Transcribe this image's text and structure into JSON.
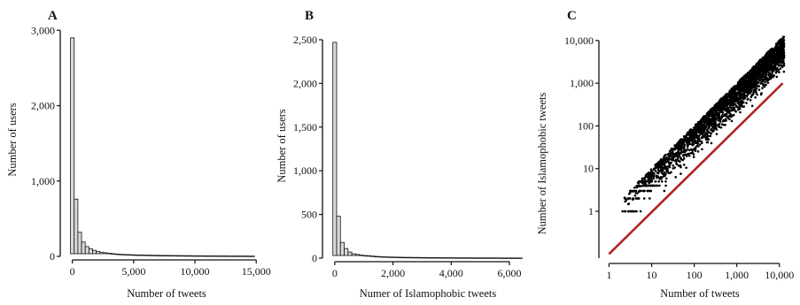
{
  "chart_data": [
    {
      "panel": "A",
      "type": "bar",
      "xlabel": "Number of tweets",
      "ylabel": "Number of users",
      "xlim": [
        -700,
        15200
      ],
      "ylim": [
        0,
        3050
      ],
      "xticks": [
        0,
        5000,
        10000,
        15000
      ],
      "xtick_labels": [
        "0",
        "5,000",
        "10,000",
        "15,000"
      ],
      "yticks": [
        0,
        1000,
        2000,
        3000
      ],
      "ytick_labels": [
        "0",
        "1,000",
        "2,000",
        "3,000"
      ],
      "bin_width": 300,
      "bin_start": -150,
      "values": [
        2900,
        760,
        320,
        190,
        130,
        100,
        80,
        65,
        55,
        48,
        42,
        36,
        32,
        28,
        26,
        24,
        22,
        20,
        19,
        18,
        17,
        16,
        15,
        14,
        13,
        12,
        12,
        11,
        11,
        10,
        10,
        9,
        9,
        8,
        8,
        8,
        7,
        7,
        7,
        6,
        6,
        6,
        6,
        5,
        5,
        5,
        5,
        5,
        4,
        4
      ],
      "fill": "#d9d9d9",
      "stroke": "#111111"
    },
    {
      "panel": "B",
      "type": "bar",
      "xlabel": "Numer of Islamophobic tweets",
      "ylabel": "Number of users",
      "xlim": [
        -300,
        6700
      ],
      "ylim": [
        0,
        2550
      ],
      "xticks": [
        0,
        2000,
        4000,
        6000
      ],
      "xtick_labels": [
        "0",
        "2,000",
        "4,000",
        "6,000"
      ],
      "yticks": [
        0,
        500,
        1000,
        1500,
        2000,
        2500
      ],
      "ytick_labels": [
        "0",
        "500",
        "1,000",
        "1,500",
        "2,000",
        "2,500"
      ],
      "bin_width": 130,
      "bin_start": -65,
      "values": [
        2470,
        480,
        180,
        110,
        70,
        50,
        42,
        35,
        30,
        28,
        24,
        20,
        18,
        16,
        14,
        13,
        12,
        11,
        10,
        9,
        9,
        8,
        8,
        7,
        7,
        6,
        6,
        6,
        5,
        5,
        5,
        5,
        4,
        4,
        4,
        4,
        4,
        3,
        3,
        3,
        3,
        3,
        3,
        3,
        2,
        2,
        2,
        2,
        2,
        2
      ],
      "fill": "#d9d9d9",
      "stroke": "#111111"
    },
    {
      "panel": "C",
      "type": "scatter",
      "xlabel": "Number of tweets",
      "ylabel": "Number of Islamophobic tweets",
      "xscale": "log",
      "yscale": "log",
      "xlim": [
        0.7,
        18000
      ],
      "ylim": [
        0.08,
        12000
      ],
      "xticks": [
        1,
        10,
        100,
        1000,
        10000
      ],
      "xtick_labels": [
        "1",
        "10",
        "100",
        "1,000",
        "10,000"
      ],
      "yticks": [
        1,
        10,
        100,
        1000,
        10000
      ],
      "ytick_labels": [
        "1",
        "10",
        "100",
        "1,000",
        "10,000"
      ],
      "points": {
        "n": 2600,
        "x_range": [
          2,
          13000
        ],
        "trend_slope": 0.95,
        "trend_intercept_log10": -0.6,
        "spread_log10": 0.35,
        "discrete_rows": [
          1,
          2,
          3,
          4,
          5
        ],
        "point_color": "#000000"
      },
      "fit_line": {
        "x": [
          1,
          12000
        ],
        "y": [
          0.1,
          1000
        ],
        "color": "#b22222"
      }
    }
  ]
}
